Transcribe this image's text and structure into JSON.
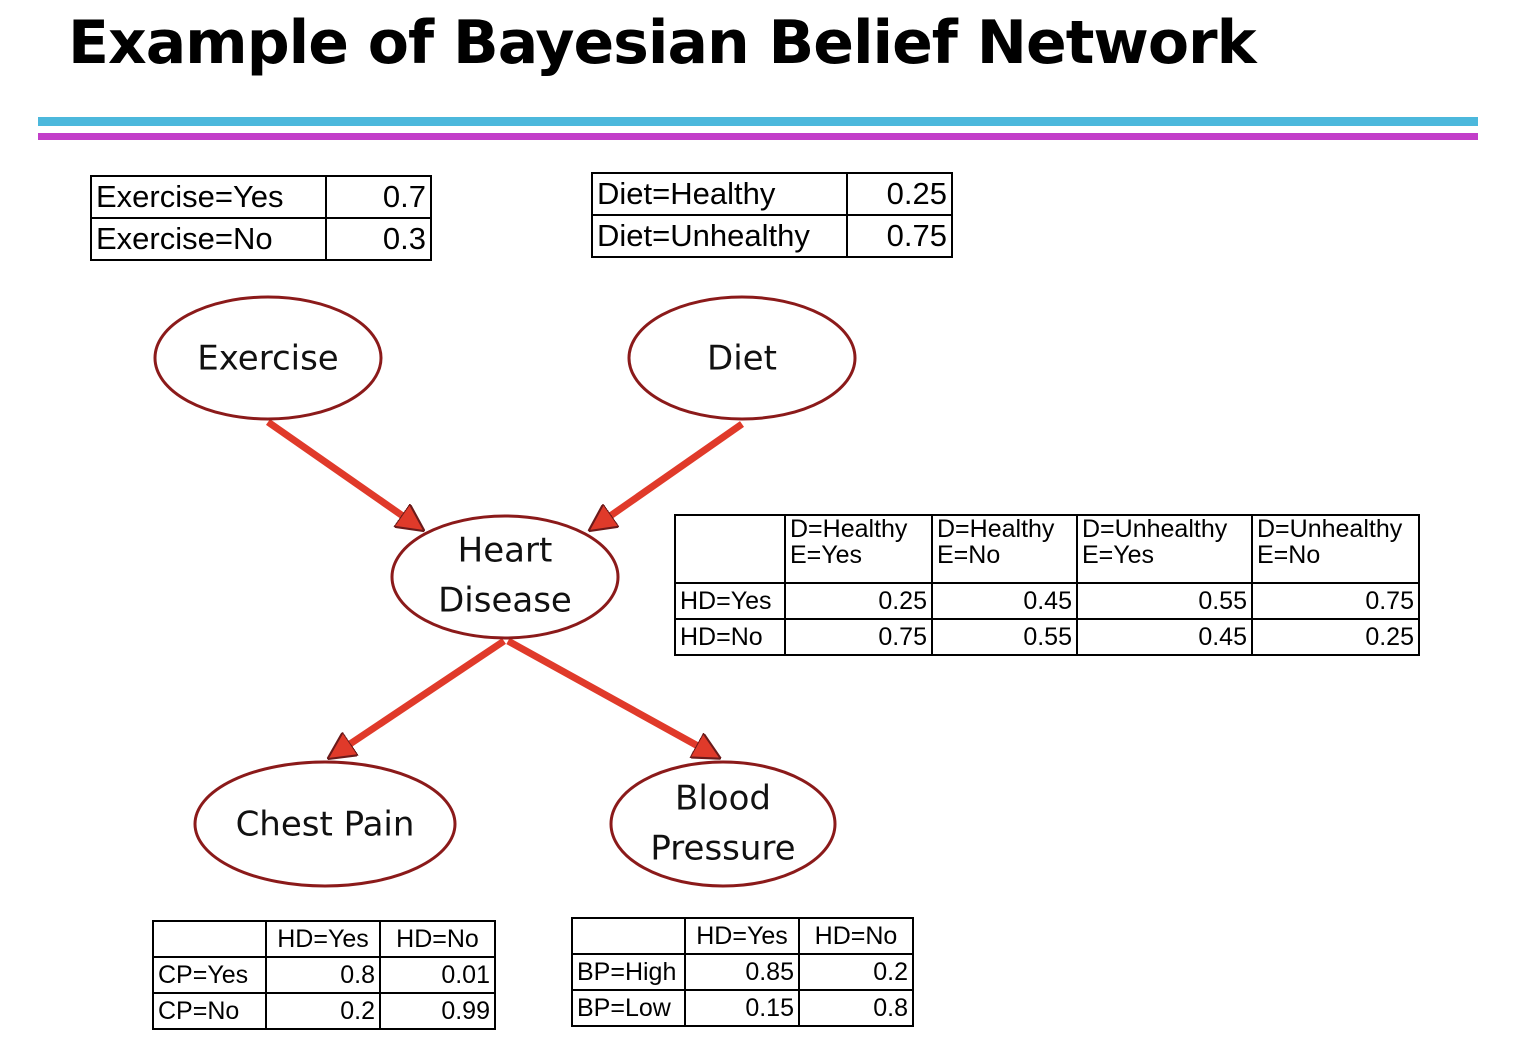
{
  "title": "Example of Bayesian Belief Network",
  "colors": {
    "rule_top": "#4cb8dc",
    "rule_bottom": "#c23ec9",
    "node_border": "#8b1a1a",
    "arrow": "#e03a2a"
  },
  "nodes": {
    "exercise": "Exercise",
    "diet": "Diet",
    "heart_disease": [
      "Heart",
      "Disease"
    ],
    "chest_pain": "Chest Pain",
    "blood_pressure": [
      "Blood",
      "Pressure"
    ]
  },
  "edges": [
    {
      "from": "Exercise",
      "to": "Heart Disease"
    },
    {
      "from": "Diet",
      "to": "Heart Disease"
    },
    {
      "from": "Heart Disease",
      "to": "Chest Pain"
    },
    {
      "from": "Heart Disease",
      "to": "Blood Pressure"
    }
  ],
  "tables": {
    "exercise": {
      "rows": [
        {
          "label": "Exercise=Yes",
          "value": "0.7"
        },
        {
          "label": "Exercise=No",
          "value": "0.3"
        }
      ]
    },
    "diet": {
      "rows": [
        {
          "label": "Diet=Healthy",
          "value": "0.25"
        },
        {
          "label": "Diet=Unhealthy",
          "value": "0.75"
        }
      ]
    },
    "heart_disease": {
      "columns": [
        [
          "D=Healthy",
          "E=Yes"
        ],
        [
          "D=Healthy",
          "E=No"
        ],
        [
          "D=Unhealthy",
          "E=Yes"
        ],
        [
          "D=Unhealthy",
          "E=No"
        ]
      ],
      "rows": [
        {
          "label": "HD=Yes",
          "values": [
            "0.25",
            "0.45",
            "0.55",
            "0.75"
          ]
        },
        {
          "label": "HD=No",
          "values": [
            "0.75",
            "0.55",
            "0.45",
            "0.25"
          ]
        }
      ]
    },
    "chest_pain": {
      "columns": [
        "HD=Yes",
        "HD=No"
      ],
      "rows": [
        {
          "label": "CP=Yes",
          "values": [
            "0.8",
            "0.01"
          ]
        },
        {
          "label": "CP=No",
          "values": [
            "0.2",
            "0.99"
          ]
        }
      ]
    },
    "blood_pressure": {
      "columns": [
        "HD=Yes",
        "HD=No"
      ],
      "rows": [
        {
          "label": "BP=High",
          "values": [
            "0.85",
            "0.2"
          ]
        },
        {
          "label": "BP=Low",
          "values": [
            "0.15",
            "0.8"
          ]
        }
      ]
    }
  }
}
